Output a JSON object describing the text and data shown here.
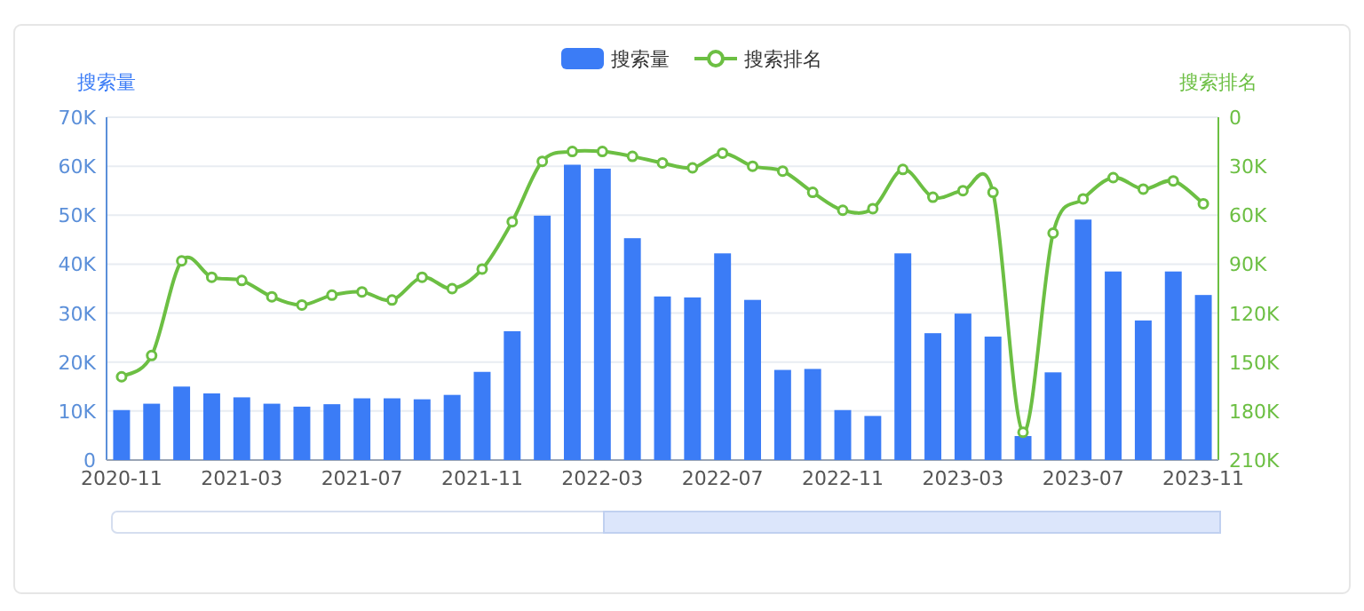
{
  "chart_data": {
    "type": "bar",
    "ylabel": "搜索量",
    "y2label": "搜索排名",
    "categories": [
      "2020-11",
      null,
      null,
      null,
      "2021-03",
      null,
      null,
      null,
      "2021-07",
      null,
      null,
      null,
      "2021-11",
      null,
      null,
      null,
      "2022-03",
      null,
      null,
      null,
      "2022-07",
      null,
      null,
      null,
      "2022-11",
      null,
      null,
      null,
      "2023-03",
      null,
      null,
      null,
      "2023-07",
      null,
      null,
      null,
      "2023-11"
    ],
    "series": [
      {
        "name": "搜索量",
        "color": "#3b7cf6",
        "values": [
          10200,
          11500,
          15000,
          13600,
          12800,
          11500,
          10900,
          11400,
          12600,
          12600,
          12400,
          13300,
          18000,
          26300,
          49900,
          60300,
          59500,
          45300,
          33400,
          33200,
          42200,
          32700,
          18400,
          18600,
          10200,
          9000,
          42200,
          25900,
          29900,
          25200,
          4900,
          17900,
          49100,
          38500,
          28500,
          38500,
          33700
        ]
      },
      {
        "name": "搜索排名",
        "type": "line",
        "axis": "y2",
        "color": "#6cbf43",
        "marker": "circle",
        "values": [
          159000,
          146000,
          88000,
          98000,
          100000,
          110000,
          115000,
          109000,
          107000,
          112000,
          98000,
          105000,
          93000,
          64000,
          27000,
          21000,
          21000,
          24000,
          28000,
          31000,
          22000,
          30000,
          33000,
          46000,
          57000,
          56000,
          32000,
          49000,
          45000,
          46000,
          193000,
          71000,
          50000,
          37000,
          44000,
          39000,
          53000
        ]
      }
    ],
    "ylim": [
      0,
      70000
    ],
    "yticks": [
      0,
      {
        "value": 10000,
        "label": "10K"
      },
      {
        "value": 20000,
        "label": "20K"
      },
      {
        "value": 30000,
        "label": "30K"
      },
      {
        "value": 40000,
        "label": "40K"
      },
      {
        "value": 50000,
        "label": "50K"
      },
      {
        "value": 60000,
        "label": "60K"
      },
      {
        "value": 70000,
        "label": "70K"
      }
    ],
    "y2lim": [
      210000,
      0
    ],
    "y2ticks": [
      0,
      {
        "value": 30000,
        "label": "30K"
      },
      {
        "value": 60000,
        "label": "60K"
      },
      {
        "value": 90000,
        "label": "90K"
      },
      {
        "value": 120000,
        "label": "120K"
      },
      {
        "value": 150000,
        "label": "150K"
      },
      {
        "value": 180000,
        "label": "180K"
      },
      {
        "value": 210000,
        "label": "210K"
      }
    ],
    "grid": "y",
    "legend": "top"
  }
}
